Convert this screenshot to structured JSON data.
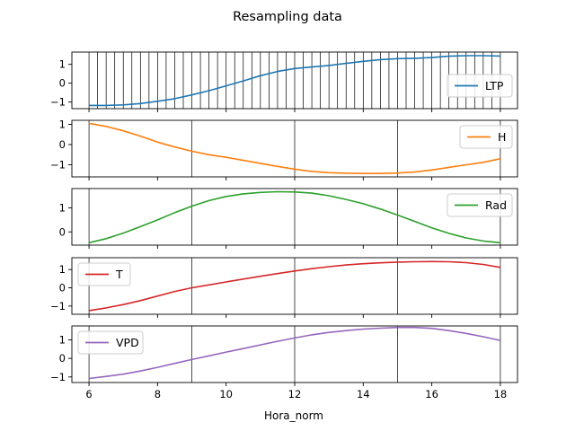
{
  "figure": {
    "title": "Resampling data",
    "xlabel": "Hora_norm"
  },
  "chart_data": [
    {
      "type": "line",
      "xlim": [
        5.5,
        18.5
      ],
      "ylim": [
        -1.35,
        1.65
      ],
      "x_ticks": [
        6,
        8,
        10,
        12,
        14,
        16,
        18
      ],
      "x_tick_labels": [
        "6",
        "8",
        "10",
        "12",
        "14",
        "16",
        "18"
      ],
      "y_ticks": [
        -1,
        0,
        1
      ],
      "y_tick_labels": [
        "−1",
        "0",
        "1"
      ],
      "vlines_start": 6.0,
      "vlines_end": 18.0,
      "vlines_step": 0.25,
      "legend_loc": "right",
      "series": [
        {
          "name": "LTP",
          "color": "#1f77b4",
          "x": [
            6,
            6.5,
            7,
            7.5,
            8,
            8.5,
            9,
            9.5,
            10,
            10.5,
            11,
            11.5,
            12,
            12.5,
            13,
            13.5,
            14,
            14.5,
            15,
            15.5,
            16,
            16.5,
            17,
            17.5,
            18
          ],
          "y": [
            -1.18,
            -1.18,
            -1.15,
            -1.08,
            -0.96,
            -0.82,
            -0.62,
            -0.4,
            -0.14,
            0.12,
            0.4,
            0.62,
            0.78,
            0.86,
            0.94,
            1.05,
            1.16,
            1.25,
            1.3,
            1.32,
            1.36,
            1.43,
            1.46,
            1.46,
            1.44
          ]
        }
      ]
    },
    {
      "type": "line",
      "xlim": [
        5.5,
        18.5
      ],
      "ylim": [
        -1.6,
        1.2
      ],
      "x_ticks": [
        6,
        8,
        10,
        12,
        14,
        16,
        18
      ],
      "x_tick_labels": [
        "6",
        "8",
        "10",
        "12",
        "14",
        "16",
        "18"
      ],
      "y_ticks": [
        -1,
        0,
        1
      ],
      "y_tick_labels": [
        "−1",
        "0",
        "1"
      ],
      "vlines": [
        6,
        9,
        12,
        15,
        18
      ],
      "legend_loc": "upper right",
      "series": [
        {
          "name": "H",
          "color": "#ff7f0e",
          "x": [
            6,
            6.5,
            7,
            7.5,
            8,
            8.5,
            9,
            9.5,
            10,
            10.5,
            11,
            11.5,
            12,
            12.5,
            13,
            13.5,
            14,
            14.5,
            15,
            15.5,
            16,
            16.5,
            17,
            17.5,
            18
          ],
          "y": [
            1.05,
            0.9,
            0.68,
            0.42,
            0.12,
            -0.12,
            -0.33,
            -0.5,
            -0.63,
            -0.78,
            -0.93,
            -1.08,
            -1.22,
            -1.33,
            -1.39,
            -1.42,
            -1.43,
            -1.43,
            -1.41,
            -1.36,
            -1.26,
            -1.13,
            -1.0,
            -0.88,
            -0.7
          ]
        }
      ]
    },
    {
      "type": "line",
      "xlim": [
        5.5,
        18.5
      ],
      "ylim": [
        -0.55,
        1.8
      ],
      "x_ticks": [
        6,
        8,
        10,
        12,
        14,
        16,
        18
      ],
      "x_tick_labels": [
        "6",
        "8",
        "10",
        "12",
        "14",
        "16",
        "18"
      ],
      "y_ticks": [
        0,
        1
      ],
      "y_tick_labels": [
        "0",
        "1"
      ],
      "vlines": [
        6,
        9,
        12,
        15,
        18
      ],
      "legend_loc": "upper right",
      "series": [
        {
          "name": "Rad",
          "color": "#2ca02c",
          "x": [
            6,
            6.5,
            7,
            7.5,
            8,
            8.5,
            9,
            9.5,
            10,
            10.5,
            11,
            11.5,
            12,
            12.5,
            13,
            13.5,
            14,
            14.5,
            15,
            15.5,
            16,
            16.5,
            17,
            17.5,
            18
          ],
          "y": [
            -0.45,
            -0.28,
            -0.05,
            0.22,
            0.5,
            0.8,
            1.07,
            1.3,
            1.47,
            1.58,
            1.64,
            1.67,
            1.66,
            1.61,
            1.5,
            1.35,
            1.17,
            0.95,
            0.7,
            0.44,
            0.17,
            -0.06,
            -0.25,
            -0.38,
            -0.45
          ]
        }
      ]
    },
    {
      "type": "line",
      "xlim": [
        5.5,
        18.5
      ],
      "ylim": [
        -1.45,
        1.65
      ],
      "x_ticks": [
        6,
        8,
        10,
        12,
        14,
        16,
        18
      ],
      "x_tick_labels": [
        "6",
        "8",
        "10",
        "12",
        "14",
        "16",
        "18"
      ],
      "y_ticks": [
        -1,
        0,
        1
      ],
      "y_tick_labels": [
        "−1",
        "0",
        "1"
      ],
      "vlines": [
        6,
        9,
        12,
        15,
        18
      ],
      "legend_loc": "upper left",
      "series": [
        {
          "name": "T",
          "color": "#d62728",
          "x": [
            6,
            6.5,
            7,
            7.5,
            8,
            8.5,
            9,
            9.5,
            10,
            10.5,
            11,
            11.5,
            12,
            12.5,
            13,
            13.5,
            14,
            14.5,
            15,
            15.5,
            16,
            16.5,
            17,
            17.5,
            18
          ],
          "y": [
            -1.25,
            -1.1,
            -0.92,
            -0.7,
            -0.45,
            -0.2,
            0.0,
            0.16,
            0.32,
            0.48,
            0.63,
            0.78,
            0.92,
            1.05,
            1.16,
            1.25,
            1.32,
            1.37,
            1.41,
            1.43,
            1.44,
            1.43,
            1.38,
            1.28,
            1.12
          ]
        }
      ]
    },
    {
      "type": "line",
      "xlim": [
        5.5,
        18.5
      ],
      "ylim": [
        -1.3,
        1.75
      ],
      "x_ticks": [
        6,
        8,
        10,
        12,
        14,
        16,
        18
      ],
      "x_tick_labels": [
        "6",
        "8",
        "10",
        "12",
        "14",
        "16",
        "18"
      ],
      "y_ticks": [
        -1,
        0,
        1
      ],
      "y_tick_labels": [
        "−1",
        "0",
        "1"
      ],
      "vlines": [
        6,
        9,
        12,
        15,
        18
      ],
      "legend_loc": "upper left",
      "series": [
        {
          "name": "VPD",
          "color": "#9467bd",
          "x": [
            6,
            6.5,
            7,
            7.5,
            8,
            8.5,
            9,
            9.5,
            10,
            10.5,
            11,
            11.5,
            12,
            12.5,
            13,
            13.5,
            14,
            14.5,
            15,
            15.5,
            16,
            16.5,
            17,
            17.5,
            18
          ],
          "y": [
            -1.08,
            -0.97,
            -0.85,
            -0.68,
            -0.48,
            -0.27,
            -0.06,
            0.14,
            0.34,
            0.53,
            0.73,
            0.92,
            1.1,
            1.27,
            1.4,
            1.5,
            1.58,
            1.63,
            1.67,
            1.67,
            1.62,
            1.5,
            1.35,
            1.17,
            0.97
          ]
        }
      ]
    }
  ]
}
